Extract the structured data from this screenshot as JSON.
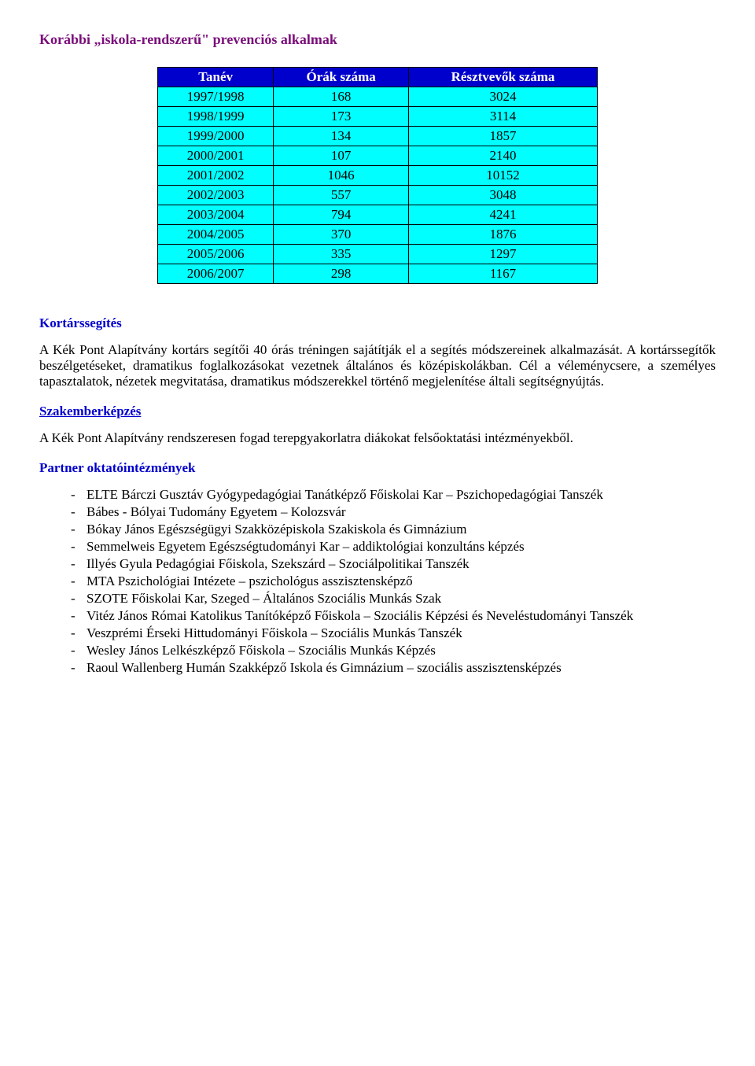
{
  "title": "Korábbi „iskola-rendszerű\" prevenciós alkalmak",
  "table": {
    "header_bg": "#0000cc",
    "header_color": "#ffffff",
    "cell_bg": "#00ffff",
    "border_color": "#000000",
    "columns": [
      "Tanév",
      "Órák száma",
      "Résztvevők száma"
    ],
    "rows": [
      [
        "1997/1998",
        "168",
        "3024"
      ],
      [
        "1998/1999",
        "173",
        "3114"
      ],
      [
        "1999/2000",
        "134",
        "1857"
      ],
      [
        "2000/2001",
        "107",
        "2140"
      ],
      [
        "2001/2002",
        "1046",
        "10152"
      ],
      [
        "2002/2003",
        "557",
        "3048"
      ],
      [
        "2003/2004",
        "794",
        "4241"
      ],
      [
        "2004/2005",
        "370",
        "1876"
      ],
      [
        "2005/2006",
        "335",
        "1297"
      ],
      [
        "2006/2007",
        "298",
        "1167"
      ]
    ]
  },
  "section1": {
    "heading": "Kortárssegítés",
    "p1": "A Kék Pont Alapítvány kortárs segítői 40 órás tréningen sajátítják el a segítés módszereinek alkalmazását. A kortárssegítők beszélgetéseket, dramatikus foglalkozásokat vezetnek általános és középiskolákban. Cél a véleménycsere, a személyes tapasztalatok, nézetek megvitatása, dramatikus módszerekkel történő megjelenítése általi segítségnyújtás."
  },
  "section2": {
    "heading": "Szakemberképzés",
    "p1": "A Kék Pont Alapítvány rendszeresen fogad terepgyakorlatra diákokat felsőoktatási intézményekből."
  },
  "section3": {
    "heading": "Partner oktatóintézmények",
    "items": [
      "ELTE Bárczi Gusztáv Gyógypedagógiai Tanátképző Főiskolai Kar – Pszichopedagógiai Tanszék",
      "Bábes - Bólyai Tudomány Egyetem – Kolozsvár",
      "Bókay János Egészségügyi Szakközépiskola Szakiskola és Gimnázium",
      "Semmelweis Egyetem Egészségtudományi Kar – addiktológiai konzultáns képzés",
      "Illyés Gyula Pedagógiai Főiskola, Szekszárd – Szociálpolitikai Tanszék",
      "MTA Pszichológiai Intézete – pszichológus asszisztensképző",
      "SZOTE Főiskolai Kar, Szeged – Általános Szociális Munkás Szak",
      "Vitéz János Római Katolikus Tanítóképző Főiskola – Szociális Képzési és Neveléstudományi Tanszék",
      "Veszprémi Érseki Hittudományi Főiskola – Szociális Munkás Tanszék",
      "Wesley János Lelkészképző Főiskola – Szociális Munkás Képzés",
      "Raoul Wallenberg Humán Szakképző Iskola és Gimnázium – szociális asszisztensképzés"
    ]
  },
  "colors": {
    "heading_purple": "#7a0e7a",
    "heading_blue": "#0000cc",
    "text": "#000000",
    "background": "#ffffff"
  },
  "fonts": {
    "family": "Times New Roman",
    "body_size_pt": 12,
    "heading_size_pt": 13
  }
}
